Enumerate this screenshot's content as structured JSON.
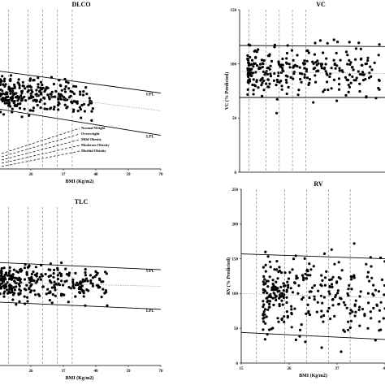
{
  "chart_data": [
    {
      "type": "scatter",
      "title": "DLCO",
      "xlabel": "BMI (Kg/m2)",
      "ylabel": "",
      "xlim": [
        15,
        70
      ],
      "ylim": [
        0,
        260
      ],
      "x_ticks": [
        "26",
        "37",
        "48",
        "59",
        "70"
      ],
      "y_ticks": [],
      "cutoffs": [
        18.5,
        25,
        30,
        35,
        40
      ],
      "upl": {
        "label": "UPL",
        "from": [
          15,
          160
        ],
        "to": [
          70,
          124
        ]
      },
      "mean": {
        "from": [
          15,
          128
        ],
        "to": [
          70,
          95
        ]
      },
      "lpl": {
        "label": "LPL",
        "from": [
          15,
          98
        ],
        "to": [
          70,
          55
        ]
      },
      "legend": [
        "Normal Weight",
        "Overweight",
        "Mild Obesity",
        "Moderate Obesity",
        "Morbid Obesity"
      ],
      "legend_placement": "bottom-left",
      "seed": 11,
      "n": 300,
      "x_range": [
        15,
        47
      ],
      "y_center": 128,
      "y_spread": 15
    },
    {
      "type": "scatter",
      "title": "VC",
      "xlabel": "",
      "ylabel": "VC (% Predicted)",
      "xlim": [
        15,
        70
      ],
      "ylim": [
        0,
        150
      ],
      "x_ticks": [],
      "y_ticks": [
        "0",
        "50",
        "100",
        "150"
      ],
      "cutoffs": [
        18.5,
        25,
        30,
        35,
        40
      ],
      "upl": {
        "label": "",
        "from": [
          15,
          117
        ],
        "to": [
          70,
          116
        ]
      },
      "mean": {
        "from": [
          15,
          93
        ],
        "to": [
          70,
          91
        ]
      },
      "lpl": {
        "label": "",
        "from": [
          15,
          69
        ],
        "to": [
          70,
          69
        ]
      },
      "legend": [],
      "seed": 23,
      "n": 300,
      "x_range": [
        18,
        68
      ],
      "y_center": 95,
      "y_spread": 11
    },
    {
      "type": "scatter",
      "title": "TLC",
      "xlabel": "BMI (Kg/m2)",
      "ylabel": "",
      "xlim": [
        15,
        70
      ],
      "ylim": [
        0,
        200
      ],
      "x_ticks": [
        "26",
        "37",
        "48",
        "59",
        "70"
      ],
      "y_ticks": [],
      "cutoffs": [
        18.5,
        25,
        30,
        35,
        40
      ],
      "upl": {
        "label": "UPL",
        "from": [
          15,
          130
        ],
        "to": [
          70,
          121
        ]
      },
      "mean": {
        "from": [
          15,
          105
        ],
        "to": [
          70,
          100
        ]
      },
      "lpl": {
        "label": "LPL",
        "from": [
          15,
          80
        ],
        "to": [
          70,
          71
        ]
      },
      "legend": [],
      "seed": 37,
      "n": 300,
      "x_range": [
        15,
        52
      ],
      "y_center": 105,
      "y_spread": 11
    },
    {
      "type": "scatter",
      "title": "RV",
      "xlabel": "BMI (Kg/m2)",
      "ylabel": "RV (% Predicted)",
      "xlim": [
        15,
        48
      ],
      "ylim": [
        0,
        250
      ],
      "x_ticks": [
        "15",
        "26",
        "37",
        "48"
      ],
      "y_ticks": [
        "0",
        "50",
        "100",
        "150",
        "200",
        "250"
      ],
      "cutoffs": [
        18.5,
        25,
        30,
        35,
        40
      ],
      "upl": {
        "label": "",
        "from": [
          15,
          157
        ],
        "to": [
          48,
          150
        ]
      },
      "mean": {
        "from": [
          15,
          100
        ],
        "to": [
          48,
          94
        ]
      },
      "lpl": {
        "label": "",
        "from": [
          15,
          44
        ],
        "to": [
          48,
          34
        ]
      },
      "legend": [],
      "seed": 53,
      "n": 300,
      "x_range": [
        20,
        48
      ],
      "y_center": 100,
      "y_spread": 28
    }
  ]
}
